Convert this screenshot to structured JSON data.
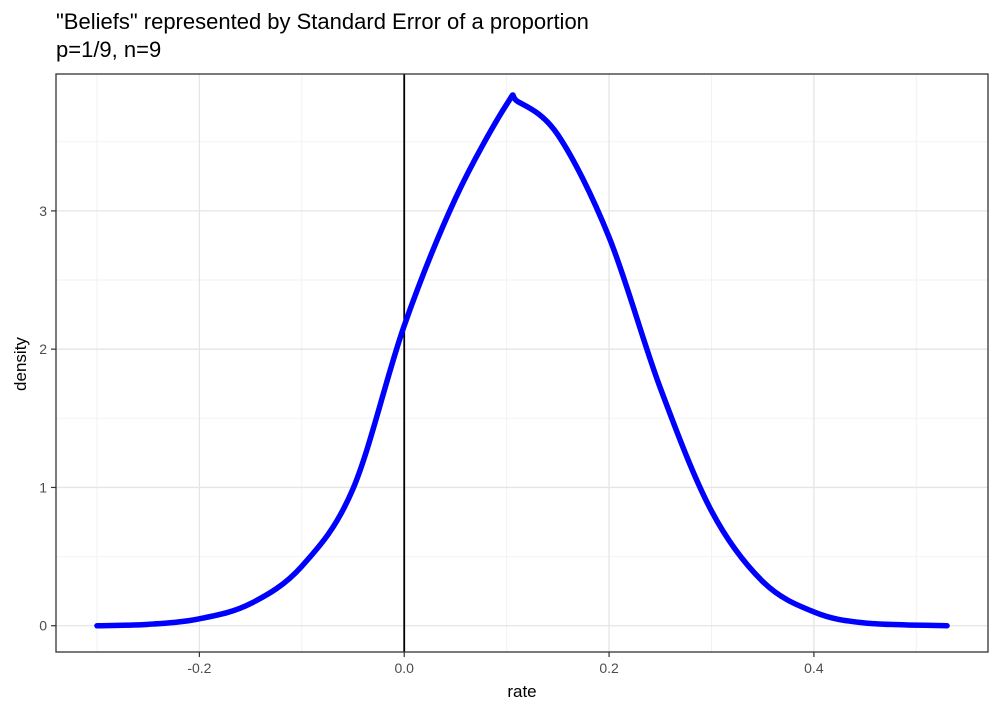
{
  "chart_data": {
    "type": "line",
    "title": "\"Beliefs\" represented by Standard Error of a proportion",
    "subtitle": "p=1/9, n=9",
    "xlabel": "rate",
    "ylabel": "density",
    "xlim": [
      -0.34,
      0.57
    ],
    "ylim": [
      -0.19,
      3.99
    ],
    "x_ticks": [
      -0.2,
      0.0,
      0.2,
      0.4
    ],
    "x_tick_labels": [
      "-0.2",
      "0.0",
      "0.2",
      "0.4"
    ],
    "y_ticks": [
      0,
      1,
      2,
      3
    ],
    "y_tick_labels": [
      "0",
      "1",
      "2",
      "3"
    ],
    "x_minor_ticks": [
      -0.3,
      -0.1,
      0.1,
      0.3,
      0.5
    ],
    "y_minor_ticks": [
      0.5,
      1.5,
      2.5,
      3.5
    ],
    "grid": true,
    "vline": 0.0,
    "series": [
      {
        "color": "#0000ff",
        "x": [
          -0.3,
          -0.25,
          -0.2,
          -0.15,
          -0.1,
          -0.05,
          0.0,
          0.05,
          0.1,
          0.111,
          0.15,
          0.2,
          0.25,
          0.3,
          0.35,
          0.4,
          0.45,
          0.53
        ],
        "y": [
          0.0,
          0.01,
          0.05,
          0.16,
          0.43,
          0.99,
          2.17,
          3.09,
          3.77,
          3.79,
          3.55,
          2.81,
          1.72,
          0.83,
          0.32,
          0.1,
          0.02,
          0.0
        ]
      }
    ]
  }
}
